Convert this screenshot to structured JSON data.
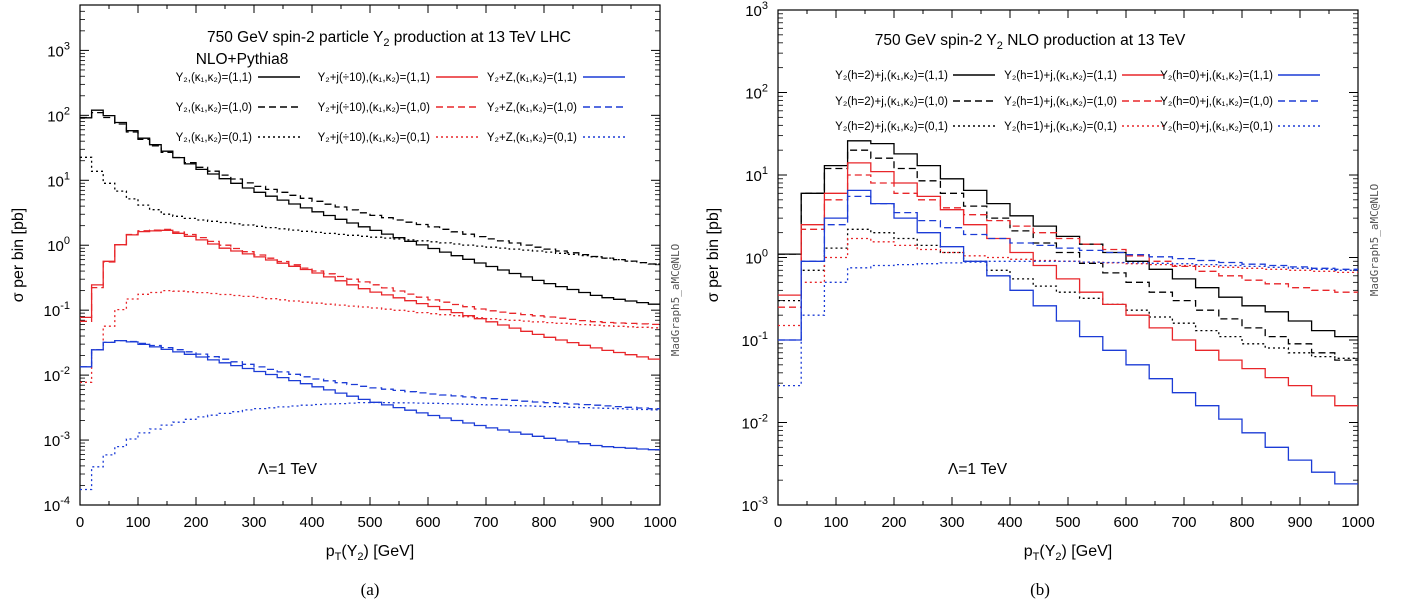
{
  "chart_data": [
    {
      "type": "line",
      "caption": "(a)",
      "title": "750 GeV spin-2 particle Y2 production at 13 TeV LHC",
      "subtitle": "NLO+Pythia8",
      "watermark": "MadGraph5_aMC@NLO",
      "annotation": "Λ=1 TeV",
      "xlabel": "pT(Y2) [GeV]",
      "ylabel": "σ per bin [pb]",
      "xlim": [
        0,
        1000
      ],
      "ylim": [
        0.0001,
        5000
      ],
      "yscale": "log",
      "xticks": [
        "0",
        "100",
        "200",
        "300",
        "400",
        "500",
        "600",
        "700",
        "800",
        "900",
        "1000"
      ],
      "yticks": [
        {
          "v": 0.0001,
          "b": "10",
          "e": "-4"
        },
        {
          "v": 0.001,
          "b": "10",
          "e": "-3"
        },
        {
          "v": 0.01,
          "b": "10",
          "e": "-2"
        },
        {
          "v": 0.1,
          "b": "10",
          "e": "-1"
        },
        {
          "v": 1,
          "b": "10",
          "e": "0"
        },
        {
          "v": 10,
          "b": "10",
          "e": "1"
        },
        {
          "v": 100,
          "b": "10",
          "e": "2"
        },
        {
          "v": 1000,
          "b": "10",
          "e": "3"
        }
      ],
      "bin_width": 20,
      "series": [
        {
          "name": "Y2,(κ1,κ2)=(1,1)",
          "color": "#000000",
          "dash": "solid",
          "x": [
            0,
            30,
            60,
            100,
            150,
            200,
            300,
            400,
            500,
            600,
            700,
            800,
            900,
            1000
          ],
          "y": [
            80,
            120,
            90,
            50,
            28,
            16,
            7,
            3.5,
            1.8,
            0.95,
            0.5,
            0.27,
            0.16,
            0.12
          ]
        },
        {
          "name": "Y2,(κ1,κ2)=(1,0)",
          "color": "#000000",
          "dash": "dashed",
          "x": [
            0,
            30,
            60,
            100,
            150,
            200,
            300,
            400,
            500,
            600,
            700,
            800,
            900,
            1000
          ],
          "y": [
            85,
            110,
            85,
            48,
            27,
            17,
            8.5,
            5,
            3,
            2,
            1.3,
            0.9,
            0.65,
            0.5
          ]
        },
        {
          "name": "Y2,(κ1,κ2)=(0,1)",
          "color": "#000000",
          "dash": "dotted",
          "x": [
            0,
            20,
            50,
            100,
            150,
            200,
            300,
            400,
            500,
            600,
            700,
            800,
            900,
            1000
          ],
          "y": [
            30,
            17,
            9,
            4.5,
            3,
            2.5,
            2,
            1.6,
            1.35,
            1.15,
            0.95,
            0.8,
            0.65,
            0.5
          ]
        },
        {
          "name": "Y2+j(÷10),(κ1,κ2)=(1,1)",
          "color": "#e8262a",
          "dash": "solid",
          "x": [
            0,
            20,
            40,
            60,
            80,
            100,
            150,
            200,
            250,
            300,
            400,
            500,
            600,
            700,
            800,
            900,
            1000
          ],
          "y": [
            0.04,
            0.15,
            0.4,
            0.8,
            1.3,
            1.6,
            1.7,
            1.3,
            0.9,
            0.7,
            0.4,
            0.2,
            0.12,
            0.07,
            0.04,
            0.025,
            0.017
          ]
        },
        {
          "name": "Y2+j(÷10),(κ1,κ2)=(1,0)",
          "color": "#e8262a",
          "dash": "dashed",
          "x": [
            0,
            20,
            40,
            60,
            80,
            100,
            150,
            200,
            250,
            300,
            400,
            500,
            600,
            700,
            800,
            900,
            1000
          ],
          "y": [
            0.035,
            0.13,
            0.38,
            0.8,
            1.3,
            1.65,
            1.75,
            1.4,
            1.0,
            0.75,
            0.42,
            0.26,
            0.15,
            0.1,
            0.08,
            0.065,
            0.06
          ]
        },
        {
          "name": "Y2+j(÷10),(κ1,κ2)=(0,1)",
          "color": "#e8262a",
          "dash": "dotted",
          "x": [
            0,
            20,
            40,
            60,
            80,
            100,
            150,
            200,
            300,
            400,
            500,
            600,
            700,
            800,
            900,
            1000
          ],
          "y": [
            0.004,
            0.015,
            0.04,
            0.08,
            0.13,
            0.17,
            0.2,
            0.19,
            0.16,
            0.13,
            0.11,
            0.09,
            0.075,
            0.065,
            0.058,
            0.053
          ]
        },
        {
          "name": "Y2+Z,(κ1,κ2)=(1,1)",
          "color": "#1c3cd6",
          "dash": "solid",
          "x": [
            0,
            20,
            40,
            60,
            80,
            100,
            200,
            300,
            400,
            500,
            600,
            700,
            800,
            900,
            1000
          ],
          "y": [
            0.009,
            0.02,
            0.03,
            0.034,
            0.034,
            0.031,
            0.02,
            0.012,
            0.007,
            0.004,
            0.0025,
            0.0016,
            0.0011,
            0.0008,
            0.0007
          ]
        },
        {
          "name": "Y2+Z,(κ1,κ2)=(1,0)",
          "color": "#1c3cd6",
          "dash": "dashed",
          "x": [
            0,
            20,
            40,
            60,
            80,
            100,
            200,
            300,
            400,
            500,
            600,
            700,
            800,
            900,
            1000
          ],
          "y": [
            0.009,
            0.02,
            0.03,
            0.034,
            0.034,
            0.032,
            0.022,
            0.014,
            0.009,
            0.0065,
            0.0052,
            0.0044,
            0.0038,
            0.0034,
            0.003
          ]
        },
        {
          "name": "Y2+Z,(κ1,κ2)=(0,1)",
          "color": "#1c3cd6",
          "dash": "dotted",
          "x": [
            0,
            20,
            40,
            60,
            80,
            100,
            150,
            200,
            300,
            400,
            500,
            600,
            700,
            800,
            900,
            1000
          ],
          "y": [
            0.0001,
            0.0003,
            0.0005,
            0.0007,
            0.0009,
            0.0012,
            0.0017,
            0.0022,
            0.003,
            0.0035,
            0.0038,
            0.0037,
            0.0035,
            0.0033,
            0.0031,
            0.0029
          ]
        }
      ]
    },
    {
      "type": "line",
      "caption": "(b)",
      "title": "750 GeV spin-2 Y2 NLO production at 13 TeV",
      "watermark": "MadGraph5_aMC@NLO",
      "annotation": "Λ=1 TeV",
      "xlabel": "pT(Y2) [GeV]",
      "ylabel": "σ per bin [pb]",
      "xlim": [
        0,
        1000
      ],
      "ylim": [
        0.001,
        1000
      ],
      "yscale": "log",
      "xticks": [
        "0",
        "100",
        "200",
        "300",
        "400",
        "500",
        "600",
        "700",
        "800",
        "900",
        "1000"
      ],
      "yticks": [
        {
          "v": 0.001,
          "b": "10",
          "e": "-3"
        },
        {
          "v": 0.01,
          "b": "10",
          "e": "-2"
        },
        {
          "v": 0.1,
          "b": "10",
          "e": "-1"
        },
        {
          "v": 1,
          "b": "10",
          "e": "0"
        },
        {
          "v": 10,
          "b": "10",
          "e": "1"
        },
        {
          "v": 100,
          "b": "10",
          "e": "2"
        },
        {
          "v": 1000,
          "b": "10",
          "e": "3"
        }
      ],
      "bin_width": 40,
      "series": [
        {
          "name": "Y2(h=2)+j,(κ1,κ2)=(1,1)",
          "color": "#000000",
          "dash": "solid",
          "y": [
            1.1,
            6,
            13,
            26,
            24,
            18,
            13,
            9,
            6.5,
            4.5,
            3.2,
            2.4,
            1.8,
            1.45,
            1.15,
            0.9,
            0.72,
            0.55,
            0.43,
            0.33,
            0.26,
            0.22,
            0.17,
            0.13,
            0.11
          ]
        },
        {
          "name": "Y2(h=1)+j,(κ1,κ2)=(1,1)",
          "color": "#000000",
          "dash": "dashed",
          "y": [
            1.1,
            6,
            12,
            20,
            16,
            12,
            8.5,
            6,
            4.2,
            3,
            2.1,
            1.5,
            1.15,
            0.85,
            0.65,
            0.5,
            0.38,
            0.3,
            0.23,
            0.18,
            0.14,
            0.11,
            0.09,
            0.07,
            0.057
          ]
        },
        {
          "name": "Y2(h=0)+j,(κ1,κ2)=(1,1)",
          "color": "#000000",
          "dash": "dotted",
          "y": [
            0.3,
            0.7,
            1.3,
            2.2,
            2.0,
            1.7,
            1.4,
            1.15,
            0.9,
            0.7,
            0.55,
            0.45,
            0.38,
            0.32,
            0.27,
            0.23,
            0.19,
            0.16,
            0.13,
            0.11,
            0.09,
            0.08,
            0.07,
            0.063,
            0.06
          ]
        },
        {
          "name": "Y2(h=2)+j,(κ1,κ2)=(1,0)",
          "color": "#e8262a",
          "dash": "solid",
          "y": [
            0.35,
            2.5,
            6,
            14,
            11,
            8,
            5.5,
            3.8,
            2.5,
            1.7,
            1.15,
            0.8,
            0.55,
            0.38,
            0.27,
            0.2,
            0.14,
            0.1,
            0.075,
            0.057,
            0.045,
            0.035,
            0.028,
            0.021,
            0.016
          ]
        },
        {
          "name": "Y2(h=1)+j,(κ1,κ2)=(1,0)",
          "color": "#e8262a",
          "dash": "dashed",
          "y": [
            0.25,
            2.2,
            5,
            10,
            8,
            6,
            5,
            4,
            3.3,
            2.8,
            2.4,
            2,
            1.7,
            1.45,
            1.25,
            1.05,
            0.9,
            0.78,
            0.68,
            0.6,
            0.53,
            0.48,
            0.43,
            0.4,
            0.38
          ]
        },
        {
          "name": "Y2(h=0)+j,(κ1,κ2)=(1,0)",
          "color": "#e8262a",
          "dash": "dotted",
          "y": [
            0.15,
            0.5,
            1.0,
            1.7,
            1.55,
            1.4,
            1.25,
            1.15,
            1.05,
            1.0,
            0.95,
            0.92,
            0.9,
            0.88,
            0.86,
            0.84,
            0.82,
            0.8,
            0.78,
            0.76,
            0.74,
            0.72,
            0.7,
            0.68,
            0.66
          ]
        },
        {
          "name": "Y2(h=2)+j,(κ1,κ2)=(0,1)",
          "color": "#1c3cd6",
          "dash": "solid",
          "y": [
            0.1,
            0.9,
            3,
            6.5,
            4.5,
            3,
            2,
            1.35,
            0.9,
            0.6,
            0.4,
            0.26,
            0.17,
            0.11,
            0.075,
            0.05,
            0.034,
            0.023,
            0.016,
            0.011,
            0.0075,
            0.005,
            0.0035,
            0.0025,
            0.0018
          ]
        },
        {
          "name": "Y2(h=1)+j,(κ1,κ2)=(0,1)",
          "color": "#1c3cd6",
          "dash": "dashed",
          "y": [
            0.1,
            0.9,
            2.5,
            5.5,
            4.5,
            3.5,
            2.8,
            2.3,
            1.9,
            1.7,
            1.5,
            1.4,
            1.3,
            1.22,
            1.15,
            1.08,
            1.02,
            0.97,
            0.92,
            0.87,
            0.83,
            0.8,
            0.77,
            0.74,
            0.72
          ]
        },
        {
          "name": "Y2(h=0)+j,(κ1,κ2)=(0,1)",
          "color": "#1c3cd6",
          "dash": "dotted",
          "y": [
            0.028,
            0.2,
            0.5,
            0.75,
            0.8,
            0.82,
            0.84,
            0.86,
            0.88,
            0.9,
            0.9,
            0.9,
            0.9,
            0.88,
            0.87,
            0.86,
            0.85,
            0.84,
            0.82,
            0.8,
            0.78,
            0.76,
            0.74,
            0.72,
            0.7
          ]
        }
      ]
    }
  ],
  "legend_a": [
    [
      "Y₂,(κ₁,κ₂)=(1,1)",
      "Y₂+j(÷10),(κ₁,κ₂)=(1,1)",
      "Y₂+Z,(κ₁,κ₂)=(1,1)"
    ],
    [
      "Y₂,(κ₁,κ₂)=(1,0)",
      "Y₂+j(÷10),(κ₁,κ₂)=(1,0)",
      "Y₂+Z,(κ₁,κ₂)=(1,0)"
    ],
    [
      "Y₂,(κ₁,κ₂)=(0,1)",
      "Y₂+j(÷10),(κ₁,κ₂)=(0,1)",
      "Y₂+Z,(κ₁,κ₂)=(0,1)"
    ]
  ],
  "legend_b": [
    [
      "Y₂(h=2)+j,(κ₁,κ₂)=(1,1)",
      "Y₂(h=1)+j,(κ₁,κ₂)=(1,1)",
      "Y₂(h=0)+j,(κ₁,κ₂)=(1,1)"
    ],
    [
      "Y₂(h=2)+j,(κ₁,κ₂)=(1,0)",
      "Y₂(h=1)+j,(κ₁,κ₂)=(1,0)",
      "Y₂(h=0)+j,(κ₁,κ₂)=(1,0)"
    ],
    [
      "Y₂(h=2)+j,(κ₁,κ₂)=(0,1)",
      "Y₂(h=1)+j,(κ₁,κ₂)=(0,1)",
      "Y₂(h=0)+j,(κ₁,κ₂)=(0,1)"
    ]
  ]
}
